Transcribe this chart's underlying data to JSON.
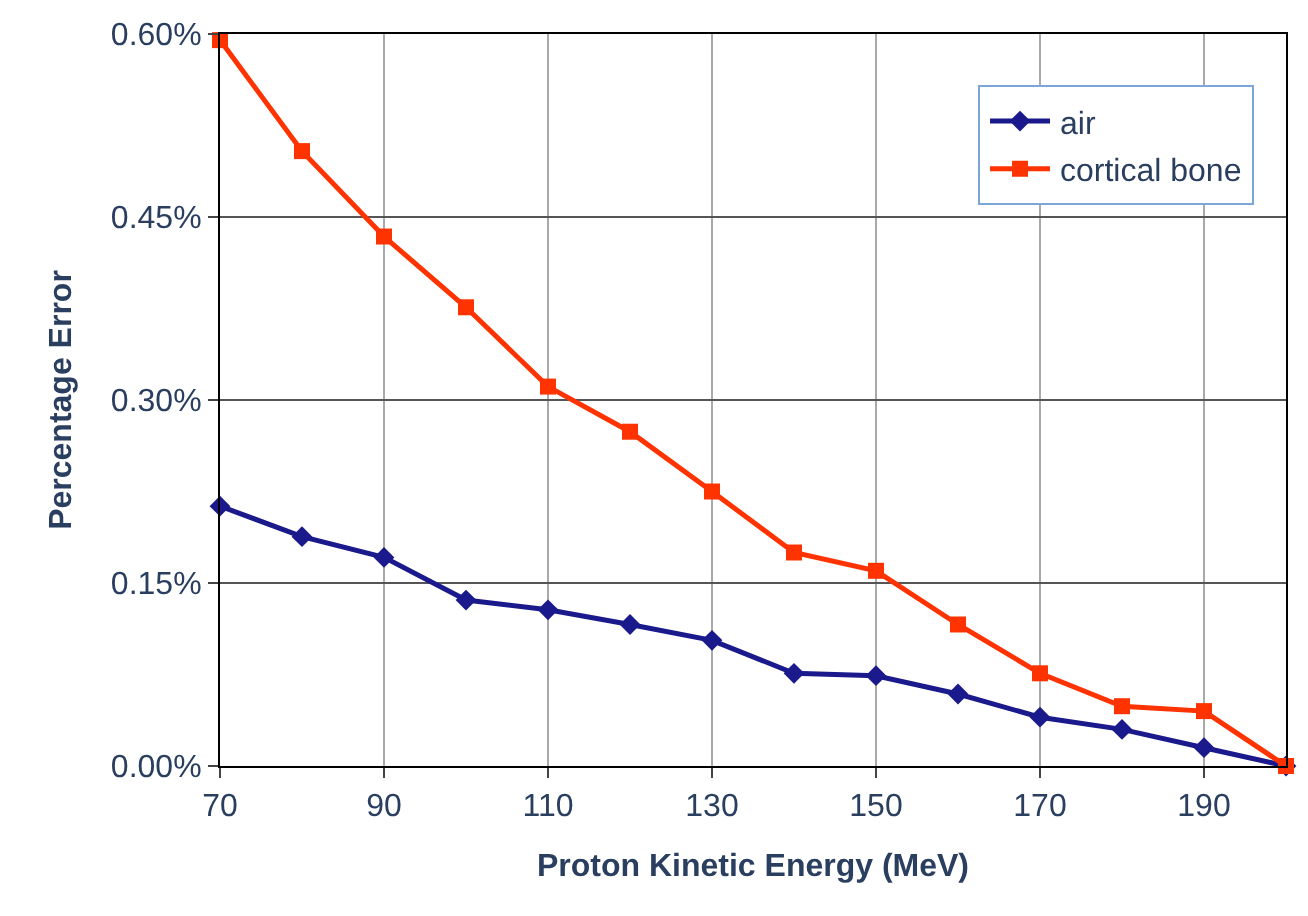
{
  "chart_data": {
    "type": "line",
    "xlabel": "Proton Kinetic Energy (MeV)",
    "ylabel": "Percentage Error",
    "x": [
      70,
      80,
      90,
      100,
      110,
      120,
      130,
      140,
      150,
      160,
      170,
      180,
      190,
      200
    ],
    "series": [
      {
        "name": "air",
        "color": "#1a1a8c",
        "marker": "diamond",
        "values": [
          0.213,
          0.188,
          0.171,
          0.136,
          0.128,
          0.116,
          0.103,
          0.076,
          0.074,
          0.059,
          0.04,
          0.03,
          0.015,
          0.0
        ]
      },
      {
        "name": "cortical bone",
        "color": "#ff3300",
        "marker": "square",
        "values": [
          0.595,
          0.504,
          0.434,
          0.376,
          0.311,
          0.274,
          0.225,
          0.175,
          0.16,
          0.116,
          0.076,
          0.049,
          0.045,
          0.0
        ]
      }
    ],
    "xlim": [
      70,
      200
    ],
    "xticks": [
      70,
      90,
      110,
      130,
      150,
      170,
      190
    ],
    "ylim": [
      0,
      0.6
    ],
    "yticks": [
      {
        "value": 0,
        "label": "0.00%"
      },
      {
        "value": 0.15,
        "label": "0.15%"
      },
      {
        "value": 0.3,
        "label": "0.30%"
      },
      {
        "value": 0.45,
        "label": "0.45%"
      },
      {
        "value": 0.6,
        "label": "0.60%"
      }
    ],
    "grid": true,
    "legend": "top right",
    "line_style": "solid"
  }
}
